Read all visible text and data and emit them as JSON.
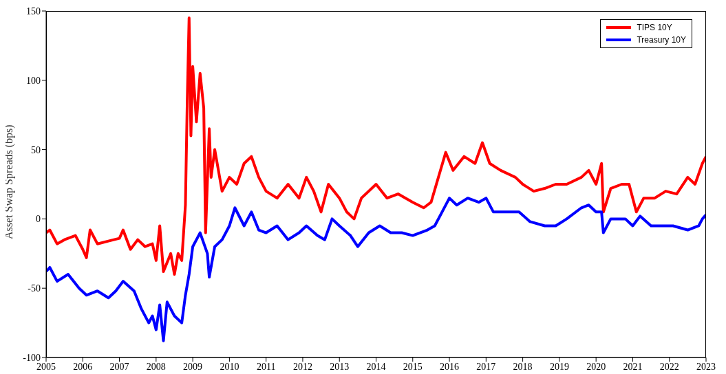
{
  "chart_data": {
    "type": "line",
    "ylabel": "Asset Swap Spreads (bps)",
    "xlim": [
      2005,
      2023
    ],
    "xticks": [
      2005,
      2006,
      2007,
      2008,
      2009,
      2010,
      2011,
      2012,
      2013,
      2014,
      2015,
      2016,
      2017,
      2018,
      2019,
      2020,
      2021,
      2022,
      2023
    ],
    "ylim": [
      -100,
      150
    ],
    "yticks": [
      -100,
      -50,
      0,
      50,
      100,
      150
    ],
    "grid": false,
    "legend": "top right",
    "marker": "none",
    "line_style": "solid",
    "series": [
      {
        "name": "TIPS 10Y",
        "color": "#ff0000",
        "x": [
          2005.0,
          2005.1,
          2005.3,
          2005.5,
          2005.8,
          2006.0,
          2006.1,
          2006.2,
          2006.4,
          2006.7,
          2007.0,
          2007.1,
          2007.3,
          2007.5,
          2007.7,
          2007.9,
          2008.0,
          2008.1,
          2008.2,
          2008.4,
          2008.5,
          2008.6,
          2008.7,
          2008.8,
          2008.85,
          2008.9,
          2008.95,
          2009.0,
          2009.1,
          2009.2,
          2009.3,
          2009.35,
          2009.45,
          2009.5,
          2009.6,
          2009.8,
          2010.0,
          2010.2,
          2010.4,
          2010.6,
          2010.8,
          2011.0,
          2011.3,
          2011.6,
          2011.9,
          2012.1,
          2012.3,
          2012.5,
          2012.7,
          2013.0,
          2013.2,
          2013.4,
          2013.6,
          2014.0,
          2014.3,
          2014.6,
          2015.0,
          2015.3,
          2015.5,
          2015.7,
          2015.9,
          2016.1,
          2016.4,
          2016.7,
          2016.9,
          2017.1,
          2017.4,
          2017.8,
          2018.0,
          2018.3,
          2018.6,
          2018.9,
          2019.2,
          2019.6,
          2019.8,
          2020.0,
          2020.15,
          2020.2,
          2020.4,
          2020.7,
          2020.9,
          2021.0,
          2021.1,
          2021.3,
          2021.6,
          2021.9,
          2022.2,
          2022.5,
          2022.7,
          2022.9,
          2023.0
        ],
        "values": [
          -10,
          -8,
          -18,
          -15,
          -12,
          -22,
          -28,
          -8,
          -18,
          -16,
          -14,
          -8,
          -22,
          -15,
          -20,
          -18,
          -30,
          -5,
          -38,
          -25,
          -40,
          -25,
          -30,
          10,
          85,
          145,
          60,
          110,
          70,
          105,
          80,
          -10,
          65,
          30,
          50,
          20,
          30,
          25,
          40,
          45,
          30,
          20,
          15,
          25,
          15,
          30,
          20,
          5,
          25,
          15,
          5,
          0,
          15,
          25,
          15,
          18,
          12,
          8,
          12,
          30,
          48,
          35,
          45,
          40,
          55,
          40,
          35,
          30,
          25,
          20,
          22,
          25,
          25,
          30,
          35,
          25,
          40,
          5,
          22,
          25,
          25,
          15,
          5,
          15,
          15,
          20,
          18,
          30,
          25,
          40,
          45
        ]
      },
      {
        "name": "Treasury 10Y",
        "color": "#0000ff",
        "x": [
          2005.0,
          2005.1,
          2005.3,
          2005.6,
          2005.9,
          2006.1,
          2006.4,
          2006.7,
          2006.9,
          2007.1,
          2007.4,
          2007.6,
          2007.8,
          2007.9,
          2008.0,
          2008.1,
          2008.2,
          2008.3,
          2008.5,
          2008.7,
          2008.8,
          2008.9,
          2009.0,
          2009.2,
          2009.4,
          2009.45,
          2009.6,
          2009.8,
          2010.0,
          2010.15,
          2010.4,
          2010.6,
          2010.8,
          2011.0,
          2011.3,
          2011.6,
          2011.9,
          2012.1,
          2012.4,
          2012.6,
          2012.8,
          2013.0,
          2013.3,
          2013.5,
          2013.8,
          2014.1,
          2014.4,
          2014.7,
          2015.0,
          2015.4,
          2015.6,
          2015.8,
          2016.0,
          2016.2,
          2016.5,
          2016.8,
          2017.0,
          2017.2,
          2017.5,
          2017.9,
          2018.2,
          2018.6,
          2018.9,
          2019.2,
          2019.6,
          2019.8,
          2020.0,
          2020.15,
          2020.2,
          2020.4,
          2020.8,
          2021.0,
          2021.2,
          2021.5,
          2021.8,
          2022.1,
          2022.5,
          2022.8,
          2022.9,
          2023.0
        ],
        "values": [
          -38,
          -35,
          -45,
          -40,
          -50,
          -55,
          -52,
          -57,
          -52,
          -45,
          -52,
          -65,
          -75,
          -70,
          -80,
          -62,
          -88,
          -60,
          -70,
          -75,
          -55,
          -40,
          -20,
          -10,
          -25,
          -42,
          -20,
          -15,
          -5,
          8,
          -5,
          5,
          -8,
          -10,
          -5,
          -15,
          -10,
          -5,
          -12,
          -15,
          0,
          -5,
          -12,
          -20,
          -10,
          -5,
          -10,
          -10,
          -12,
          -8,
          -5,
          5,
          15,
          10,
          15,
          12,
          15,
          5,
          5,
          5,
          -2,
          -5,
          -5,
          0,
          8,
          10,
          5,
          5,
          -10,
          0,
          0,
          -5,
          2,
          -5,
          -5,
          -5,
          -8,
          -5,
          0,
          3
        ]
      }
    ]
  }
}
